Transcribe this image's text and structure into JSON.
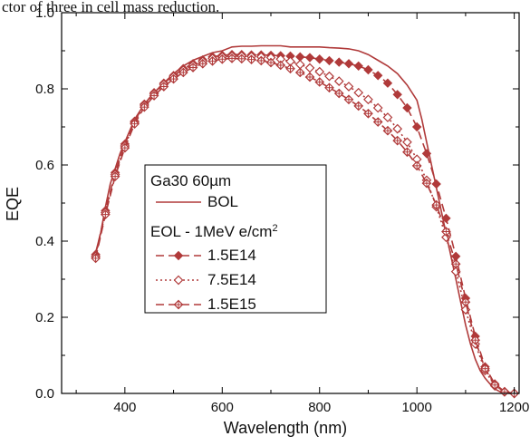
{
  "top_caption": "ctor of three in cell mass reduction.",
  "chart_data": {
    "type": "line",
    "xlabel": "Wavelength (nm)",
    "ylabel": "EQE",
    "xlim": [
      270,
      1210
    ],
    "ylim": [
      0,
      1.0
    ],
    "x_ticks": [
      400,
      600,
      800,
      1000,
      1200
    ],
    "y_ticks": [
      0.0,
      0.2,
      0.4,
      0.6,
      0.8,
      1.0
    ],
    "x_tick_labels": [
      "400",
      "600",
      "800",
      "1000",
      "1200"
    ],
    "y_tick_labels": [
      "0.0",
      "0.2",
      "0.4",
      "0.6",
      "0.8",
      "1.0"
    ],
    "grid": false,
    "legend": {
      "position": "center-left",
      "title": "Ga30 60µm",
      "subtitle": "EOL - 1MeV e/cm",
      "subtitle_sup": "2"
    },
    "series": [
      {
        "name": "BOL",
        "style": "solid",
        "marker": "none",
        "color": "#b03a3a",
        "x": [
          340,
          350,
          360,
          370,
          380,
          390,
          400,
          420,
          440,
          460,
          480,
          500,
          520,
          540,
          560,
          580,
          600,
          620,
          640,
          660,
          680,
          700,
          720,
          740,
          760,
          780,
          800,
          820,
          840,
          860,
          880,
          900,
          920,
          940,
          960,
          980,
          1000,
          1010,
          1020,
          1030,
          1040,
          1050,
          1060,
          1070,
          1080,
          1090,
          1100,
          1110,
          1120,
          1130,
          1140,
          1150,
          1160,
          1170,
          1180,
          1190,
          1200
        ],
        "values": [
          0.37,
          0.42,
          0.49,
          0.55,
          0.59,
          0.63,
          0.66,
          0.72,
          0.76,
          0.79,
          0.815,
          0.84,
          0.86,
          0.875,
          0.885,
          0.895,
          0.9,
          0.91,
          0.912,
          0.912,
          0.913,
          0.913,
          0.913,
          0.91,
          0.91,
          0.91,
          0.91,
          0.908,
          0.907,
          0.905,
          0.9,
          0.89,
          0.875,
          0.86,
          0.84,
          0.81,
          0.77,
          0.72,
          0.66,
          0.6,
          0.54,
          0.48,
          0.42,
          0.36,
          0.3,
          0.24,
          0.18,
          0.13,
          0.09,
          0.06,
          0.04,
          0.025,
          0.012,
          0.005,
          0.002,
          0.0,
          0.0
        ]
      },
      {
        "name": "1.5E14",
        "style": "dashed",
        "marker": "diamond-filled",
        "color": "#b03a3a",
        "x": [
          340,
          360,
          380,
          400,
          420,
          440,
          460,
          480,
          500,
          520,
          540,
          560,
          580,
          600,
          620,
          640,
          660,
          680,
          700,
          720,
          740,
          760,
          780,
          800,
          820,
          840,
          860,
          880,
          900,
          920,
          940,
          960,
          980,
          1000,
          1020,
          1040,
          1060,
          1080,
          1100,
          1120,
          1140,
          1160,
          1180,
          1200
        ],
        "values": [
          0.365,
          0.48,
          0.58,
          0.655,
          0.715,
          0.76,
          0.79,
          0.815,
          0.835,
          0.853,
          0.866,
          0.876,
          0.884,
          0.888,
          0.89,
          0.89,
          0.889,
          0.889,
          0.888,
          0.887,
          0.886,
          0.884,
          0.882,
          0.878,
          0.874,
          0.87,
          0.866,
          0.86,
          0.85,
          0.835,
          0.815,
          0.785,
          0.75,
          0.7,
          0.63,
          0.55,
          0.46,
          0.36,
          0.25,
          0.15,
          0.07,
          0.025,
          0.005,
          0.0
        ]
      },
      {
        "name": "7.5E14",
        "style": "dotted",
        "marker": "diamond-open",
        "color": "#b03a3a",
        "x": [
          340,
          360,
          380,
          400,
          420,
          440,
          460,
          480,
          500,
          520,
          540,
          560,
          580,
          600,
          620,
          640,
          660,
          680,
          700,
          720,
          740,
          760,
          780,
          800,
          820,
          840,
          860,
          880,
          900,
          920,
          940,
          960,
          980,
          1000,
          1020,
          1040,
          1060,
          1080,
          1100,
          1120,
          1140,
          1160,
          1180,
          1200
        ],
        "values": [
          0.36,
          0.475,
          0.575,
          0.65,
          0.712,
          0.757,
          0.787,
          0.812,
          0.832,
          0.849,
          0.862,
          0.872,
          0.88,
          0.884,
          0.886,
          0.886,
          0.885,
          0.884,
          0.882,
          0.878,
          0.872,
          0.864,
          0.855,
          0.845,
          0.833,
          0.82,
          0.806,
          0.79,
          0.772,
          0.75,
          0.725,
          0.695,
          0.66,
          0.615,
          0.56,
          0.49,
          0.41,
          0.32,
          0.22,
          0.13,
          0.06,
          0.02,
          0.004,
          0.0
        ]
      },
      {
        "name": "1.5E15",
        "style": "dashed",
        "marker": "crossed-diamond",
        "color": "#b03a3a",
        "x": [
          340,
          360,
          380,
          400,
          420,
          440,
          460,
          480,
          500,
          520,
          540,
          560,
          580,
          600,
          620,
          640,
          660,
          680,
          700,
          720,
          740,
          760,
          780,
          800,
          820,
          840,
          860,
          880,
          900,
          920,
          940,
          960,
          980,
          1000,
          1020,
          1040,
          1060,
          1080,
          1100,
          1120,
          1140,
          1160,
          1180,
          1200
        ],
        "values": [
          0.355,
          0.47,
          0.57,
          0.645,
          0.708,
          0.752,
          0.782,
          0.806,
          0.826,
          0.843,
          0.856,
          0.866,
          0.873,
          0.878,
          0.88,
          0.879,
          0.877,
          0.874,
          0.869,
          0.862,
          0.853,
          0.843,
          0.831,
          0.818,
          0.803,
          0.788,
          0.772,
          0.755,
          0.735,
          0.713,
          0.69,
          0.664,
          0.634,
          0.598,
          0.552,
          0.495,
          0.425,
          0.34,
          0.24,
          0.14,
          0.065,
          0.022,
          0.004,
          0.0
        ]
      }
    ]
  }
}
